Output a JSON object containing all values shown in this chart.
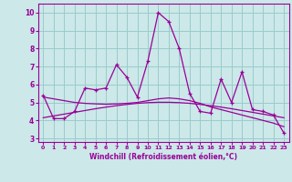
{
  "x": [
    0,
    1,
    2,
    3,
    4,
    5,
    6,
    7,
    8,
    9,
    10,
    11,
    12,
    13,
    14,
    15,
    16,
    17,
    18,
    19,
    20,
    21,
    22,
    23
  ],
  "y_main": [
    5.4,
    4.1,
    4.1,
    4.5,
    5.8,
    5.7,
    5.8,
    7.1,
    6.4,
    5.3,
    7.3,
    10.0,
    9.5,
    8.0,
    5.5,
    4.5,
    4.4,
    6.3,
    5.0,
    6.7,
    4.6,
    4.5,
    4.3,
    3.3
  ],
  "y_curve1": [
    4.15,
    4.25,
    4.35,
    4.45,
    4.55,
    4.65,
    4.74,
    4.82,
    4.89,
    4.95,
    4.99,
    5.01,
    5.01,
    4.99,
    4.95,
    4.89,
    4.82,
    4.74,
    4.65,
    4.55,
    4.45,
    4.35,
    4.25,
    4.15
  ],
  "y_curve2": [
    5.3,
    5.2,
    5.1,
    5.0,
    4.95,
    4.92,
    4.9,
    4.92,
    4.95,
    5.0,
    5.1,
    5.2,
    5.25,
    5.2,
    5.1,
    4.95,
    4.75,
    4.6,
    4.45,
    4.3,
    4.15,
    4.0,
    3.85,
    3.65
  ],
  "color": "#990099",
  "bg_color": "#cce8e8",
  "grid_color": "#99cccc",
  "xlabel": "Windchill (Refroidissement éolien,°C)",
  "xlim": [
    -0.5,
    23.5
  ],
  "ylim": [
    2.8,
    10.5
  ],
  "xticks": [
    0,
    1,
    2,
    3,
    4,
    5,
    6,
    7,
    8,
    9,
    10,
    11,
    12,
    13,
    14,
    15,
    16,
    17,
    18,
    19,
    20,
    21,
    22,
    23
  ],
  "yticks": [
    3,
    4,
    5,
    6,
    7,
    8,
    9,
    10
  ]
}
